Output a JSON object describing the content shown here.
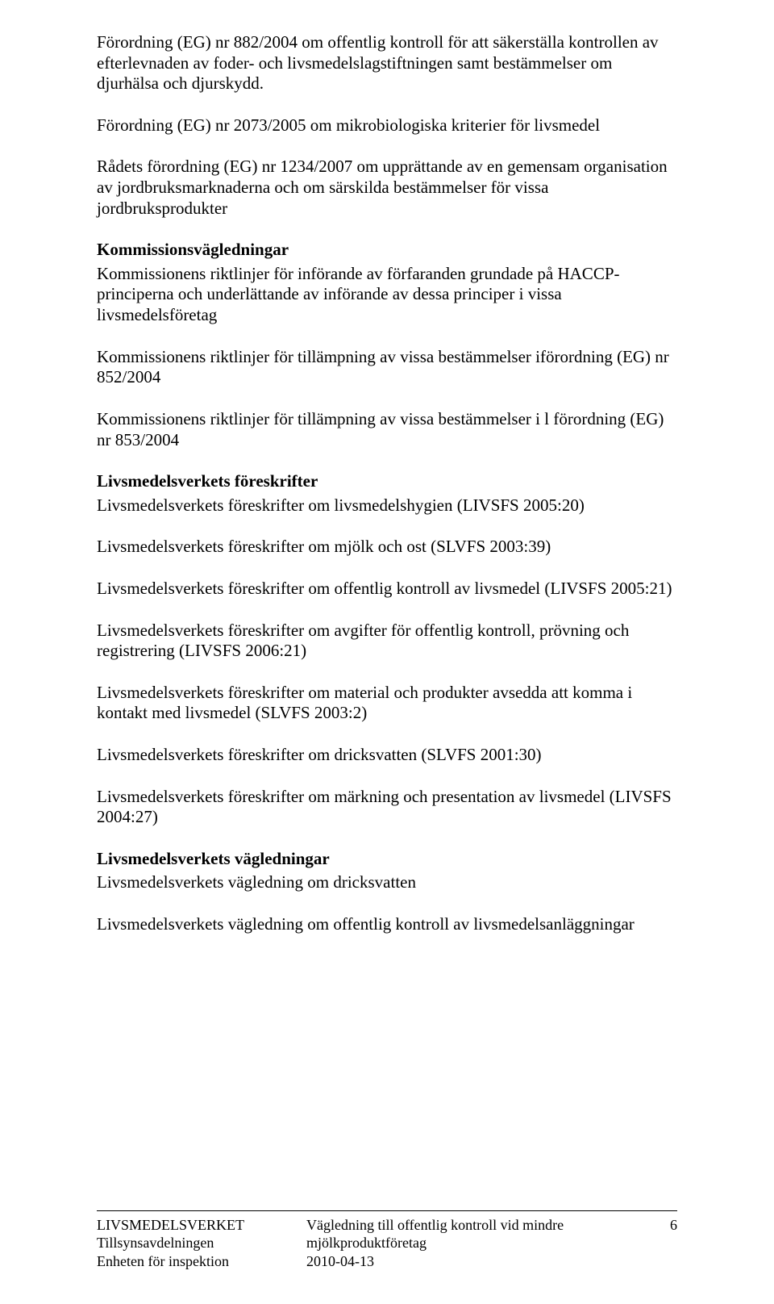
{
  "paragraphs": {
    "p1": "Förordning (EG) nr 882/2004 om offentlig kontroll för att säkerställa kontrollen av efterlevnaden av foder- och livsmedelslagstiftningen samt bestämmelser om djurhälsa och djurskydd.",
    "p2": "Förordning (EG) nr 2073/2005 om mikrobiologiska kriterier för livsmedel",
    "p3": "Rådets förordning  (EG) nr 1234/2007 om upprättande av en gemensam organisation av jordbruksmarknaderna och om särskilda bestämmelser för vissa jordbruksprodukter"
  },
  "section1": {
    "heading": "Kommissionsvägledningar",
    "p1": "Kommissionens riktlinjer för  införande av förfaranden grundade  på HACCP-principerna och underlättande av införande av dessa principer i vissa livsmedelsföretag",
    "p2": "Kommissionens riktlinjer för tillämpning av vissa bestämmelser iförordning (EG) nr 852/2004",
    "p3": "Kommissionens riktlinjer för tillämpning av vissa bestämmelser i l förordning (EG) nr 853/2004"
  },
  "section2": {
    "heading": "Livsmedelsverkets föreskrifter",
    "p1": "Livsmedelsverkets föreskrifter om livsmedelshygien (LIVSFS 2005:20)",
    "p2": "Livsmedelsverkets föreskrifter om mjölk och ost (SLVFS 2003:39)",
    "p3": "Livsmedelsverkets föreskrifter om offentlig kontroll av livsmedel (LIVSFS 2005:21)",
    "p4": "Livsmedelsverkets föreskrifter om avgifter för offentlig kontroll, prövning och registrering (LIVSFS 2006:21)",
    "p5": "Livsmedelsverkets föreskrifter om material och produkter avsedda att komma i kontakt med livsmedel (SLVFS 2003:2)",
    "p6": "Livsmedelsverkets föreskrifter om dricksvatten (SLVFS 2001:30)",
    "p7": "Livsmedelsverkets föreskrifter om märkning och presentation av livsmedel (LIVSFS 2004:27)"
  },
  "section3": {
    "heading": "Livsmedelsverkets vägledningar",
    "p1": "Livsmedelsverkets vägledning om dricksvatten",
    "p2": "Livsmedelsverkets vägledning om offentlig kontroll av livsmedelsanläggningar"
  },
  "footer": {
    "left1": "LIVSMEDELSVERKET",
    "left2": "Tillsynsavdelningen",
    "left3": "Enheten för inspektion",
    "center1": "Vägledning till offentlig kontroll vid mindre",
    "center2": "mjölkproduktföretag",
    "center3": "2010-04-13",
    "pagenum": "6"
  }
}
